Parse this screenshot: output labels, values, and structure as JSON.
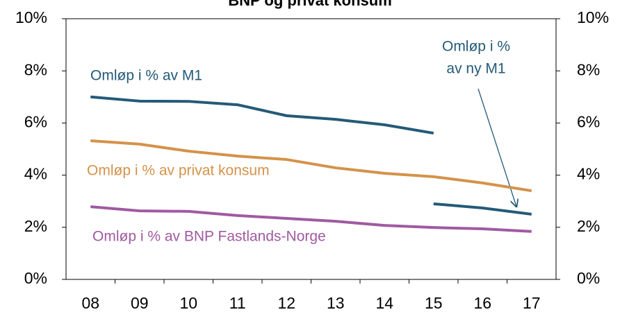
{
  "chart_data": {
    "type": "line",
    "title": "BNP og privat konsum",
    "categories": [
      "08",
      "09",
      "10",
      "11",
      "12",
      "13",
      "14",
      "15",
      "16",
      "17"
    ],
    "series": [
      {
        "name": "Omløp i % av M1",
        "color": "#245a78",
        "values": [
          7.0,
          6.84,
          6.83,
          6.7,
          6.28,
          6.14,
          5.93,
          5.61,
          null,
          null
        ]
      },
      {
        "color": "#245a78",
        "values": [
          null,
          null,
          null,
          null,
          null,
          null,
          null,
          2.9,
          2.74,
          2.5
        ]
      },
      {
        "name": "Omløp i % av privat konsum",
        "color": "#d4924a",
        "values": [
          5.32,
          5.19,
          4.92,
          4.73,
          4.6,
          4.28,
          4.07,
          3.94,
          3.7,
          3.4
        ]
      },
      {
        "name": "Omløp i  % av BNP Fastlands-Norge",
        "color": "#a05aa0",
        "values": [
          2.79,
          2.63,
          2.61,
          2.45,
          2.34,
          2.23,
          2.07,
          1.99,
          1.94,
          1.84
        ]
      }
    ],
    "annotations": [
      {
        "lines": [
          "Omløp i %",
          "av ny M1"
        ]
      }
    ],
    "ylim": [
      0,
      10
    ],
    "yticks": [
      {
        "value": 0,
        "label": "0%"
      },
      {
        "value": 2,
        "label": "2%"
      },
      {
        "value": 4,
        "label": "4%"
      },
      {
        "value": 6,
        "label": "6%"
      },
      {
        "value": 8,
        "label": "8%"
      },
      {
        "value": 10,
        "label": "10%"
      }
    ],
    "y2lim": [
      0,
      10
    ],
    "y2ticks": [
      {
        "value": 0,
        "label": "0%"
      },
      {
        "value": 2,
        "label": "2%"
      },
      {
        "value": 4,
        "label": "4%"
      },
      {
        "value": 6,
        "label": "6%"
      },
      {
        "value": 8,
        "label": "8%"
      },
      {
        "value": 10,
        "label": "10%"
      }
    ],
    "grid": false
  }
}
